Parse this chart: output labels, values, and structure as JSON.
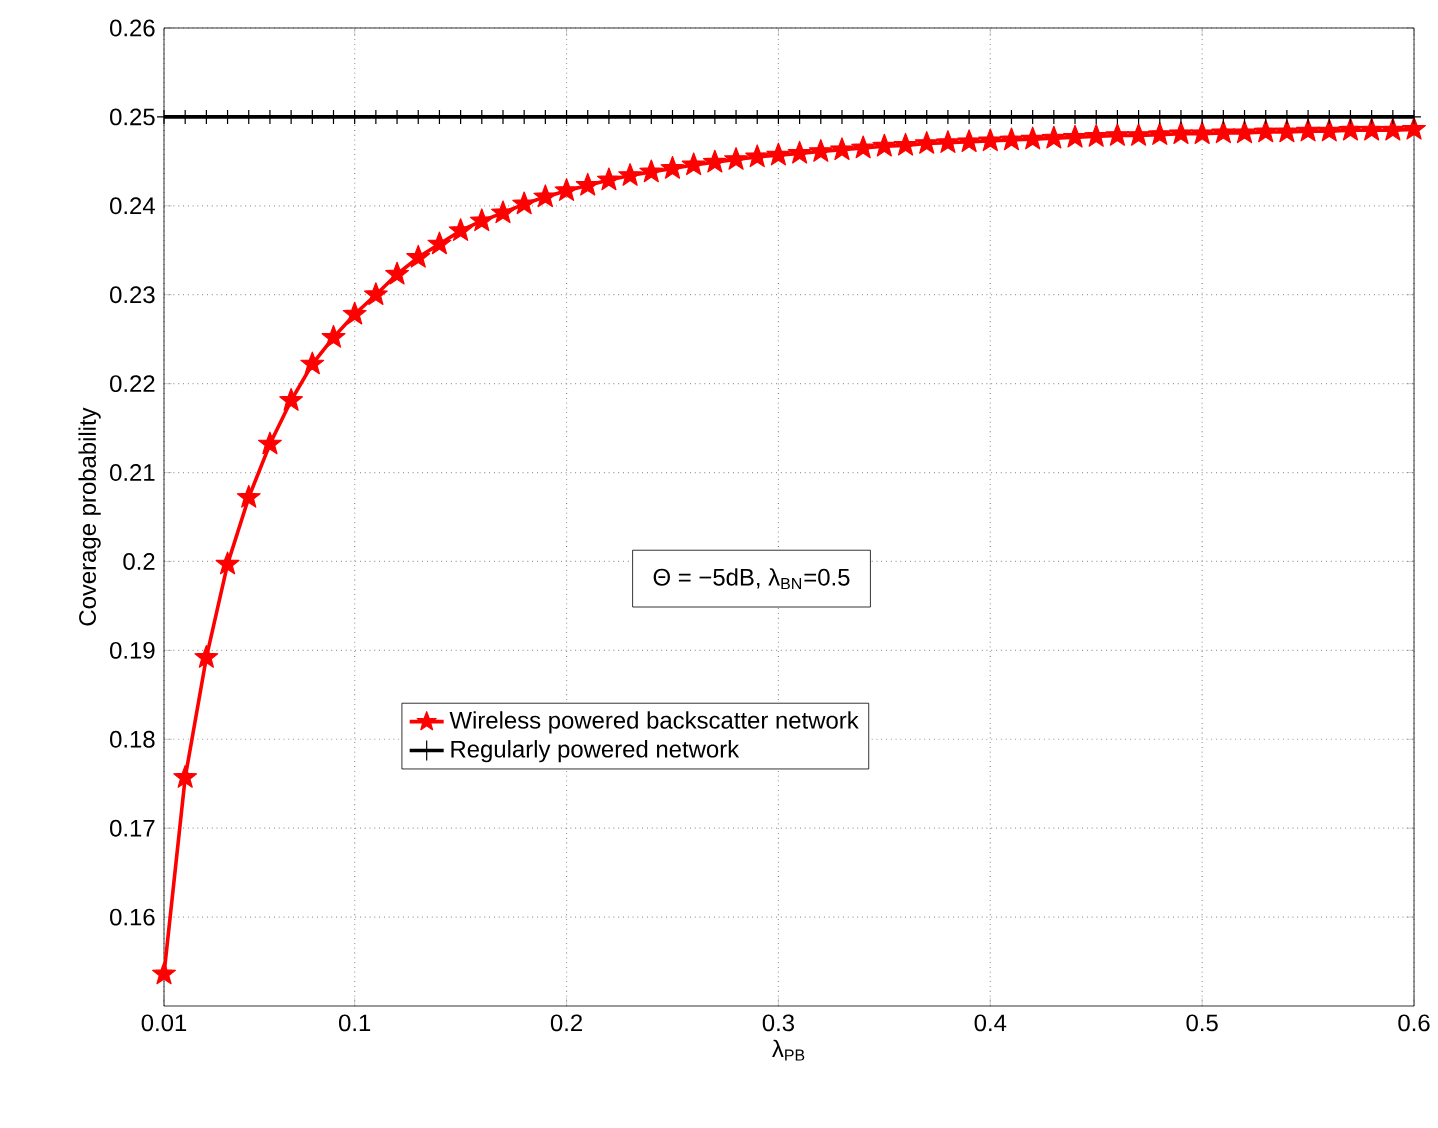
{
  "chart_data": {
    "type": "line",
    "xlabel": "λ$_{PB}$",
    "ylabel": "Coverage probability",
    "x": [
      0.01,
      0.02,
      0.03,
      0.04,
      0.05,
      0.06,
      0.07,
      0.08,
      0.09,
      0.1,
      0.11,
      0.12,
      0.13,
      0.14,
      0.15,
      0.16,
      0.17,
      0.18,
      0.19,
      0.2,
      0.21,
      0.22,
      0.23,
      0.24,
      0.25,
      0.26,
      0.27,
      0.28,
      0.29,
      0.3,
      0.31,
      0.32,
      0.33,
      0.34,
      0.35,
      0.36,
      0.37,
      0.38,
      0.39,
      0.4,
      0.41,
      0.42,
      0.43,
      0.44,
      0.45,
      0.46,
      0.47,
      0.48,
      0.49,
      0.5,
      0.51,
      0.52,
      0.53,
      0.54,
      0.55,
      0.56,
      0.57,
      0.58,
      0.59,
      0.6
    ],
    "series": [
      {
        "name": "Wireless powered backscatter network",
        "color": "#ff0000",
        "marker": "star",
        "values": [
          0.1536,
          0.1757,
          0.1892,
          0.1997,
          0.2072,
          0.2132,
          0.2181,
          0.2222,
          0.2252,
          0.2278,
          0.23,
          0.2323,
          0.2342,
          0.2357,
          0.2372,
          0.2383,
          0.2392,
          0.2402,
          0.241,
          0.2417,
          0.2423,
          0.2429,
          0.2434,
          0.2438,
          0.2442,
          0.2446,
          0.2449,
          0.2452,
          0.2455,
          0.2457,
          0.2459,
          0.2461,
          0.2463,
          0.2465,
          0.2467,
          0.2468,
          0.247,
          0.2471,
          0.2472,
          0.2473,
          0.2474,
          0.2475,
          0.2476,
          0.2477,
          0.2478,
          0.2479,
          0.2479,
          0.248,
          0.2481,
          0.2481,
          0.2482,
          0.2482,
          0.2483,
          0.2483,
          0.2484,
          0.2484,
          0.2485,
          0.2485,
          0.2485,
          0.2486
        ]
      },
      {
        "name": "Regularly powered network",
        "color": "#000000",
        "marker": "cross",
        "values": [
          0.25,
          0.25,
          0.25,
          0.25,
          0.25,
          0.25,
          0.25,
          0.25,
          0.25,
          0.25,
          0.25,
          0.25,
          0.25,
          0.25,
          0.25,
          0.25,
          0.25,
          0.25,
          0.25,
          0.25,
          0.25,
          0.25,
          0.25,
          0.25,
          0.25,
          0.25,
          0.25,
          0.25,
          0.25,
          0.25,
          0.25,
          0.25,
          0.25,
          0.25,
          0.25,
          0.25,
          0.25,
          0.25,
          0.25,
          0.25,
          0.25,
          0.25,
          0.25,
          0.25,
          0.25,
          0.25,
          0.25,
          0.25,
          0.25,
          0.25,
          0.25,
          0.25,
          0.25,
          0.25,
          0.25,
          0.25,
          0.25,
          0.25,
          0.25,
          0.25
        ]
      }
    ],
    "xlim": [
      0.01,
      0.6
    ],
    "xticks": [
      0.01,
      0.1,
      0.2,
      0.3,
      0.4,
      0.5,
      0.6
    ],
    "ylim": [
      0.15,
      0.26
    ],
    "yticks": [
      0.16,
      0.17,
      0.18,
      0.19,
      0.2,
      0.21,
      0.22,
      0.23,
      0.24,
      0.25,
      0.26
    ],
    "grid": true,
    "legend": "center",
    "line_style": "solid",
    "annotations": [
      "Θ = −5dB, λ$_{BN}$=0.5"
    ]
  }
}
